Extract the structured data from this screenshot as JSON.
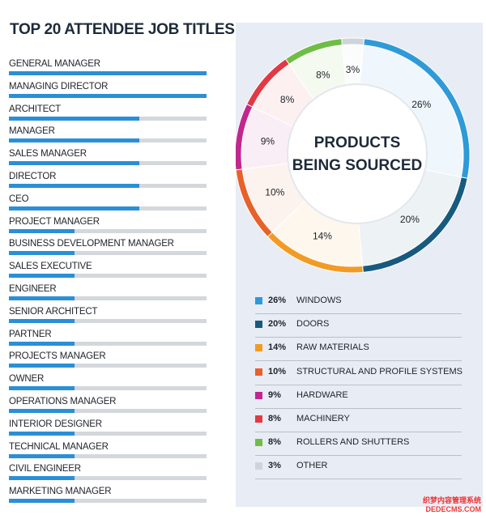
{
  "job_titles": {
    "title": "TOP 20 ATTENDEE JOB TITLES",
    "items": [
      {
        "label": "GENERAL MANAGER",
        "share": 1.0
      },
      {
        "label": "MANAGING DIRECTOR",
        "share": 1.0
      },
      {
        "label": "ARCHITECT",
        "share": 0.66
      },
      {
        "label": "MANAGER",
        "share": 0.66
      },
      {
        "label": "SALES MANAGER",
        "share": 0.66
      },
      {
        "label": "DIRECTOR",
        "share": 0.66
      },
      {
        "label": "CEO",
        "share": 0.66
      },
      {
        "label": "PROJECT MANAGER",
        "share": 0.33
      },
      {
        "label": "BUSINESS DEVELOPMENT MANAGER",
        "share": 0.33
      },
      {
        "label": "SALES EXECUTIVE",
        "share": 0.33
      },
      {
        "label": "ENGINEER",
        "share": 0.33
      },
      {
        "label": "SENIOR ARCHITECT",
        "share": 0.33
      },
      {
        "label": "PARTNER",
        "share": 0.33
      },
      {
        "label": "PROJECTS MANAGER",
        "share": 0.33
      },
      {
        "label": "OWNER",
        "share": 0.33
      },
      {
        "label": "OPERATIONS MANAGER",
        "share": 0.33
      },
      {
        "label": "INTERIOR DESIGNER",
        "share": 0.33
      },
      {
        "label": "TECHNICAL MANAGER",
        "share": 0.33
      },
      {
        "label": "CIVIL ENGINEER",
        "share": 0.33
      },
      {
        "label": "MARKETING MANAGER",
        "share": 0.33
      }
    ]
  },
  "chart_data": {
    "type": "pie",
    "title": "PRODUCTS BEING SOURCED",
    "title_lines": [
      "PRODUCTS",
      "BEING SOURCED"
    ],
    "slices": [
      {
        "label": "WINDOWS",
        "value": 26,
        "pct_label": "26%",
        "color": "#2f9ad8"
      },
      {
        "label": "DOORS",
        "value": 20,
        "pct_label": "20%",
        "color": "#175a7e"
      },
      {
        "label": "RAW MATERIALS",
        "value": 14,
        "pct_label": "14%",
        "color": "#f29b24"
      },
      {
        "label": "STRUCTURAL AND PROFILE SYSTEMS",
        "value": 10,
        "pct_label": "10%",
        "color": "#e8602a"
      },
      {
        "label": "HARDWARE",
        "value": 9,
        "pct_label": "9%",
        "color": "#c1278f"
      },
      {
        "label": "MACHINERY",
        "value": 8,
        "pct_label": "8%",
        "color": "#e23a44"
      },
      {
        "label": "ROLLERS AND SHUTTERS",
        "value": 8,
        "pct_label": "8%",
        "color": "#6fbd45"
      },
      {
        "label": "OTHER",
        "value": 3,
        "pct_label": "3%",
        "color": "#cfd4da"
      }
    ],
    "legend_position": "bottom"
  },
  "watermark": {
    "line1": "织梦内容管理系统",
    "line2": "DEDECMS.COM"
  }
}
